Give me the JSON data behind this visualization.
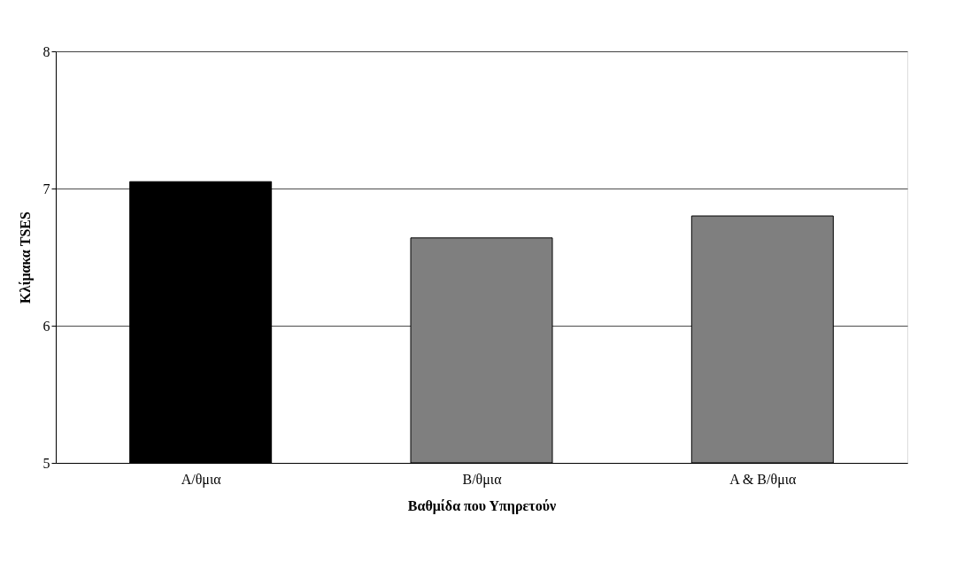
{
  "chart_data": {
    "type": "bar",
    "xlabel": "Βαθμίδα που Υπηρετούν",
    "ylabel": "Κλίμακα TSES",
    "categories": [
      "A/θμια",
      "B/θμια",
      "A & B/θμια"
    ],
    "values": [
      7.05,
      6.64,
      6.8
    ],
    "colors": [
      "#000000",
      "#7f7f7f",
      "#7f7f7f"
    ],
    "ylim": [
      5,
      8
    ],
    "yticks": [
      5,
      6,
      7,
      8
    ],
    "grid": "y"
  }
}
